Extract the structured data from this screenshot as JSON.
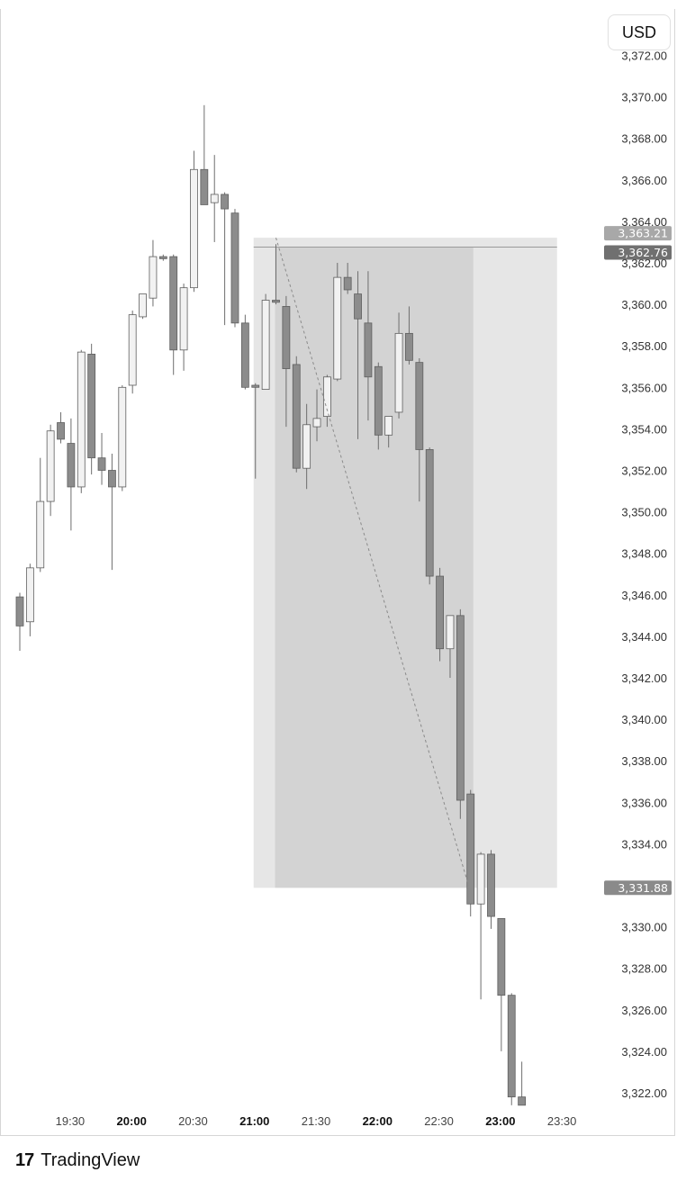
{
  "header": {
    "currency_button": "USD"
  },
  "brand": {
    "logo_glyph": "17",
    "name": "TradingView"
  },
  "colors": {
    "bull_body": "#f2f2f2",
    "bear_body": "#8c8c8c",
    "wick": "#6e6e6e",
    "profit_zone": "#d3d3d3",
    "zone_outer": "#e6e6e6",
    "entry_tag": "#9e9e9e",
    "current_tag": "#707070",
    "target_tag": "#8a8a8a"
  },
  "price_tags": [
    {
      "label": "3,363.21",
      "value": 3363.21,
      "color": "#a8a8a8"
    },
    {
      "label": "3,362.76",
      "value": 3362.76,
      "color": "#707070"
    },
    {
      "label": "3,331.88",
      "value": 3331.88,
      "color": "#8a8a8a"
    }
  ],
  "chart_data": {
    "type": "candlestick",
    "title": "",
    "xlabel": "",
    "ylabel": "",
    "ylim": [
      3320.5,
      3372.8
    ],
    "y_ticks": [
      "3,372.00",
      "3,370.00",
      "3,368.00",
      "3,366.00",
      "3,364.00",
      "3,362.00",
      "3,360.00",
      "3,358.00",
      "3,356.00",
      "3,354.00",
      "3,352.00",
      "3,350.00",
      "3,348.00",
      "3,346.00",
      "3,344.00",
      "3,342.00",
      "3,340.00",
      "3,338.00",
      "3,336.00",
      "3,334.00",
      "3,332.00",
      "3,330.00",
      "3,328.00",
      "3,326.00",
      "3,324.00",
      "3,322.00"
    ],
    "x_ticks": [
      {
        "label": "19:30",
        "bold": false,
        "index": 5
      },
      {
        "label": "20:00",
        "bold": true,
        "index": 11
      },
      {
        "label": "20:30",
        "bold": false,
        "index": 17
      },
      {
        "label": "21:00",
        "bold": true,
        "index": 23
      },
      {
        "label": "21:30",
        "bold": false,
        "index": 29
      },
      {
        "label": "22:00",
        "bold": true,
        "index": 35
      },
      {
        "label": "22:30",
        "bold": false,
        "index": 41
      },
      {
        "label": "23:00",
        "bold": true,
        "index": 47
      },
      {
        "label": "23:30",
        "bold": false,
        "index": 53
      }
    ],
    "candles": [
      {
        "o": 3345.9,
        "h": 3346.1,
        "l": 3343.3,
        "c": 3344.5
      },
      {
        "o": 3344.7,
        "h": 3347.5,
        "l": 3344.0,
        "c": 3347.3
      },
      {
        "o": 3347.3,
        "h": 3352.6,
        "l": 3347.1,
        "c": 3350.5
      },
      {
        "o": 3350.5,
        "h": 3354.2,
        "l": 3349.8,
        "c": 3353.9
      },
      {
        "o": 3354.3,
        "h": 3354.8,
        "l": 3353.3,
        "c": 3353.5
      },
      {
        "o": 3353.3,
        "h": 3354.5,
        "l": 3349.1,
        "c": 3351.2
      },
      {
        "o": 3351.2,
        "h": 3357.8,
        "l": 3350.9,
        "c": 3357.7
      },
      {
        "o": 3357.6,
        "h": 3358.1,
        "l": 3351.8,
        "c": 3352.6
      },
      {
        "o": 3352.6,
        "h": 3353.8,
        "l": 3351.3,
        "c": 3352.0
      },
      {
        "o": 3352.0,
        "h": 3352.8,
        "l": 3347.2,
        "c": 3351.2
      },
      {
        "o": 3351.2,
        "h": 3356.1,
        "l": 3351.0,
        "c": 3356.0
      },
      {
        "o": 3356.1,
        "h": 3359.7,
        "l": 3355.7,
        "c": 3359.5
      },
      {
        "o": 3359.4,
        "h": 3360.5,
        "l": 3359.3,
        "c": 3360.5
      },
      {
        "o": 3360.3,
        "h": 3363.1,
        "l": 3359.9,
        "c": 3362.3
      },
      {
        "o": 3362.3,
        "h": 3362.4,
        "l": 3362.1,
        "c": 3362.2
      },
      {
        "o": 3362.3,
        "h": 3362.4,
        "l": 3356.6,
        "c": 3357.8
      },
      {
        "o": 3357.8,
        "h": 3361.0,
        "l": 3356.8,
        "c": 3360.8
      },
      {
        "o": 3360.8,
        "h": 3367.4,
        "l": 3360.6,
        "c": 3366.5
      },
      {
        "o": 3366.5,
        "h": 3369.6,
        "l": 3364.8,
        "c": 3364.8
      },
      {
        "o": 3364.9,
        "h": 3367.2,
        "l": 3363.0,
        "c": 3365.3
      },
      {
        "o": 3365.3,
        "h": 3365.4,
        "l": 3359.0,
        "c": 3364.6
      },
      {
        "o": 3364.4,
        "h": 3364.6,
        "l": 3358.9,
        "c": 3359.1
      },
      {
        "o": 3359.1,
        "h": 3359.5,
        "l": 3355.9,
        "c": 3356.0
      },
      {
        "o": 3356.1,
        "h": 3356.2,
        "l": 3351.6,
        "c": 3356.0
      },
      {
        "o": 3355.9,
        "h": 3360.5,
        "l": 3355.9,
        "c": 3360.2
      },
      {
        "o": 3360.2,
        "h": 3362.9,
        "l": 3360.0,
        "c": 3360.1
      },
      {
        "o": 3359.9,
        "h": 3360.4,
        "l": 3354.1,
        "c": 3356.9
      },
      {
        "o": 3357.1,
        "h": 3357.5,
        "l": 3351.9,
        "c": 3352.1
      },
      {
        "o": 3352.1,
        "h": 3355.2,
        "l": 3351.1,
        "c": 3354.2
      },
      {
        "o": 3354.1,
        "h": 3355.9,
        "l": 3353.4,
        "c": 3354.5
      },
      {
        "o": 3354.6,
        "h": 3356.6,
        "l": 3354.1,
        "c": 3356.5
      },
      {
        "o": 3356.4,
        "h": 3362.0,
        "l": 3356.3,
        "c": 3361.3
      },
      {
        "o": 3361.3,
        "h": 3362.0,
        "l": 3360.5,
        "c": 3360.7
      },
      {
        "o": 3360.5,
        "h": 3361.6,
        "l": 3353.5,
        "c": 3359.3
      },
      {
        "o": 3359.1,
        "h": 3361.6,
        "l": 3354.4,
        "c": 3356.5
      },
      {
        "o": 3357.0,
        "h": 3357.2,
        "l": 3353.0,
        "c": 3353.7
      },
      {
        "o": 3353.7,
        "h": 3354.5,
        "l": 3353.1,
        "c": 3354.6
      },
      {
        "o": 3354.8,
        "h": 3359.6,
        "l": 3354.5,
        "c": 3358.6
      },
      {
        "o": 3358.6,
        "h": 3359.9,
        "l": 3357.1,
        "c": 3357.3
      },
      {
        "o": 3357.2,
        "h": 3357.4,
        "l": 3350.5,
        "c": 3353.0
      },
      {
        "o": 3353.0,
        "h": 3353.1,
        "l": 3346.5,
        "c": 3346.9
      },
      {
        "o": 3346.9,
        "h": 3347.3,
        "l": 3342.8,
        "c": 3343.4
      },
      {
        "o": 3343.4,
        "h": 3345.0,
        "l": 3342.0,
        "c": 3345.0
      },
      {
        "o": 3345.0,
        "h": 3345.3,
        "l": 3335.2,
        "c": 3336.1
      },
      {
        "o": 3336.4,
        "h": 3336.6,
        "l": 3330.5,
        "c": 3331.1
      },
      {
        "o": 3331.1,
        "h": 3333.6,
        "l": 3326.5,
        "c": 3333.5
      },
      {
        "o": 3333.5,
        "h": 3333.7,
        "l": 3329.9,
        "c": 3330.5
      },
      {
        "o": 3330.4,
        "h": 3330.4,
        "l": 3324.0,
        "c": 3326.7
      },
      {
        "o": 3326.7,
        "h": 3326.8,
        "l": 3321.4,
        "c": 3321.8
      },
      {
        "o": 3321.8,
        "h": 3323.5,
        "l": 3321.4,
        "c": 3321.4
      }
    ],
    "position": {
      "type": "short",
      "entry": 3362.76,
      "entry_upper": 3363.21,
      "target": 3331.88,
      "start_index": 23,
      "end_index": 52
    }
  }
}
